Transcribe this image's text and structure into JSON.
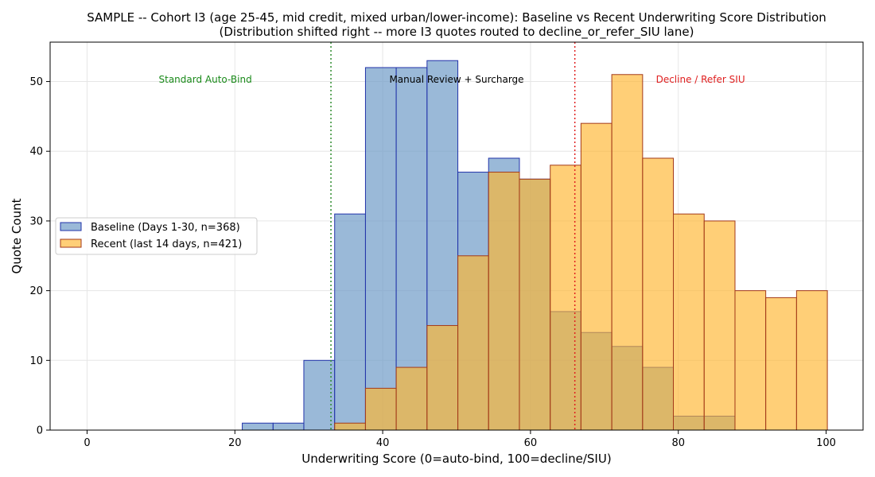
{
  "chart_data": {
    "type": "bar",
    "title": "SAMPLE -- Cohort I3 (age 25-45, mid credit, mixed urban/lower-income): Baseline vs Recent Underwriting Score Distribution",
    "subtitle": "(Distribution shifted right -- more I3 quotes routed to decline_or_refer_SIU lane)",
    "xlabel": "Underwriting Score (0=auto-bind, 100=decline/SIU)",
    "ylabel": "Quote Count",
    "xlim": [
      -5,
      105
    ],
    "ylim": [
      0,
      55.65
    ],
    "xticks": [
      0,
      20,
      40,
      60,
      80,
      100
    ],
    "yticks": [
      0,
      10,
      20,
      30,
      40,
      50
    ],
    "grid": true,
    "legend_position": "center-left",
    "bin_edges": [
      21,
      25.17,
      29.33,
      33.5,
      37.67,
      41.83,
      46,
      50.17,
      54.33,
      58.5,
      62.67,
      66.83,
      71,
      75.17,
      79.33,
      83.5,
      87.67,
      91.83,
      96,
      100.17
    ],
    "series": [
      {
        "name": "Baseline (Days 1-30, n=368)",
        "color": "#6f9bc7",
        "edge_color": "#2233aa",
        "values": [
          1,
          1,
          10,
          31,
          52,
          52,
          53,
          37,
          39,
          36,
          17,
          14,
          12,
          9,
          2,
          2,
          0,
          0,
          0
        ]
      },
      {
        "name": "Recent (last 14 days, n=421)",
        "color": "#ffb52e",
        "edge_color": "#a33a1a",
        "values": [
          0,
          0,
          0,
          1,
          6,
          9,
          15,
          25,
          37,
          36,
          38,
          44,
          51,
          39,
          31,
          30,
          20,
          19,
          20
        ]
      }
    ],
    "thresholds": [
      {
        "x": 33,
        "color": "#2e8b2e"
      },
      {
        "x": 66,
        "color": "#e02020"
      }
    ],
    "annotations": [
      {
        "text": "Standard Auto-Bind",
        "x": 16,
        "y": 50.3,
        "color": "#1a8a1a"
      },
      {
        "text": "Manual Review + Surcharge",
        "x": 50,
        "y": 50.3,
        "color": "#000000"
      },
      {
        "text": "Decline / Refer SIU",
        "x": 83,
        "y": 50.3,
        "color": "#e02020"
      }
    ]
  }
}
